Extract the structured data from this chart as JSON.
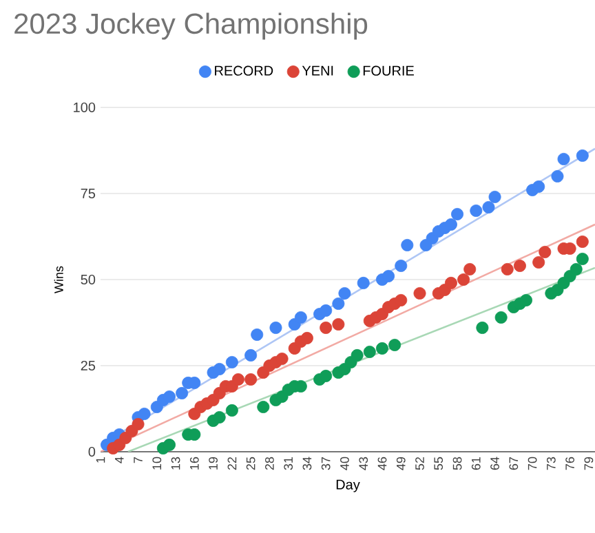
{
  "chart_data": {
    "type": "scatter",
    "title": "2023 Jockey Championship",
    "xlabel": "Day",
    "ylabel": "Wins",
    "series": [
      {
        "name": "RECORD",
        "color": "#4285f4",
        "x": [
          2,
          3,
          4,
          7,
          8,
          10,
          11,
          12,
          14,
          15,
          16,
          19,
          20,
          22,
          25,
          26,
          29,
          32,
          33,
          36,
          37,
          39,
          40,
          43,
          46,
          47,
          49,
          50,
          53,
          54,
          55,
          56,
          57,
          58,
          61,
          63,
          64,
          70,
          71,
          74,
          75,
          78
        ],
        "values": [
          2,
          4,
          5,
          10,
          11,
          13,
          15,
          16,
          17,
          20,
          20,
          23,
          24,
          26,
          28,
          34,
          36,
          37,
          39,
          40,
          41,
          43,
          46,
          49,
          50,
          51,
          54,
          60,
          60,
          62,
          64,
          65,
          66,
          69,
          70,
          71,
          74,
          76,
          77,
          80,
          85,
          86
        ]
      },
      {
        "name": "YENI",
        "color": "#db4437",
        "x": [
          3,
          4,
          5,
          6,
          7,
          16,
          17,
          18,
          19,
          20,
          21,
          22,
          23,
          25,
          27,
          28,
          29,
          30,
          32,
          33,
          34,
          37,
          39,
          44,
          45,
          46,
          47,
          48,
          49,
          52,
          55,
          56,
          57,
          59,
          60,
          66,
          68,
          71,
          72,
          75,
          76,
          78
        ],
        "values": [
          1,
          2,
          4,
          6,
          8,
          11,
          13,
          14,
          15,
          17,
          19,
          19,
          21,
          21,
          23,
          25,
          26,
          27,
          30,
          32,
          33,
          36,
          37,
          38,
          39,
          40,
          42,
          43,
          44,
          46,
          46,
          47,
          49,
          50,
          53,
          53,
          54,
          55,
          58,
          59,
          59,
          61
        ]
      },
      {
        "name": "FOURIE",
        "color": "#0f9d58",
        "x": [
          11,
          12,
          15,
          16,
          19,
          20,
          22,
          27,
          29,
          30,
          31,
          32,
          33,
          36,
          37,
          39,
          40,
          41,
          42,
          44,
          46,
          48,
          62,
          65,
          67,
          68,
          69,
          73,
          74,
          75,
          76,
          77,
          78
        ],
        "values": [
          1,
          2,
          5,
          5,
          9,
          10,
          12,
          13,
          15,
          16,
          18,
          19,
          19,
          21,
          22,
          23,
          24,
          26,
          28,
          29,
          30,
          31,
          36,
          39,
          42,
          43,
          44,
          46,
          47,
          49,
          51,
          53,
          56
        ]
      },
      {
        "type": "line",
        "marker": "none",
        "color": "#aec6f5",
        "x": [
          1,
          80
        ],
        "values": [
          2,
          88
        ]
      },
      {
        "type": "line",
        "marker": "none",
        "color": "#f2aaa4",
        "x": [
          1,
          80
        ],
        "values": [
          0,
          66
        ]
      },
      {
        "type": "line",
        "marker": "none",
        "color": "#a8d8b5",
        "x": [
          5.4,
          80
        ],
        "values": [
          0,
          53.4
        ]
      }
    ],
    "xlim": [
      1,
      80
    ],
    "ylim": [
      0,
      100
    ],
    "xticks": [
      1,
      4,
      7,
      10,
      13,
      16,
      19,
      22,
      25,
      28,
      31,
      34,
      37,
      40,
      43,
      46,
      49,
      52,
      55,
      58,
      61,
      64,
      67,
      70,
      73,
      76,
      79
    ],
    "yticks": [
      0,
      25,
      50,
      75,
      100
    ],
    "grid": "y",
    "legend": "top",
    "marker": "circle"
  }
}
